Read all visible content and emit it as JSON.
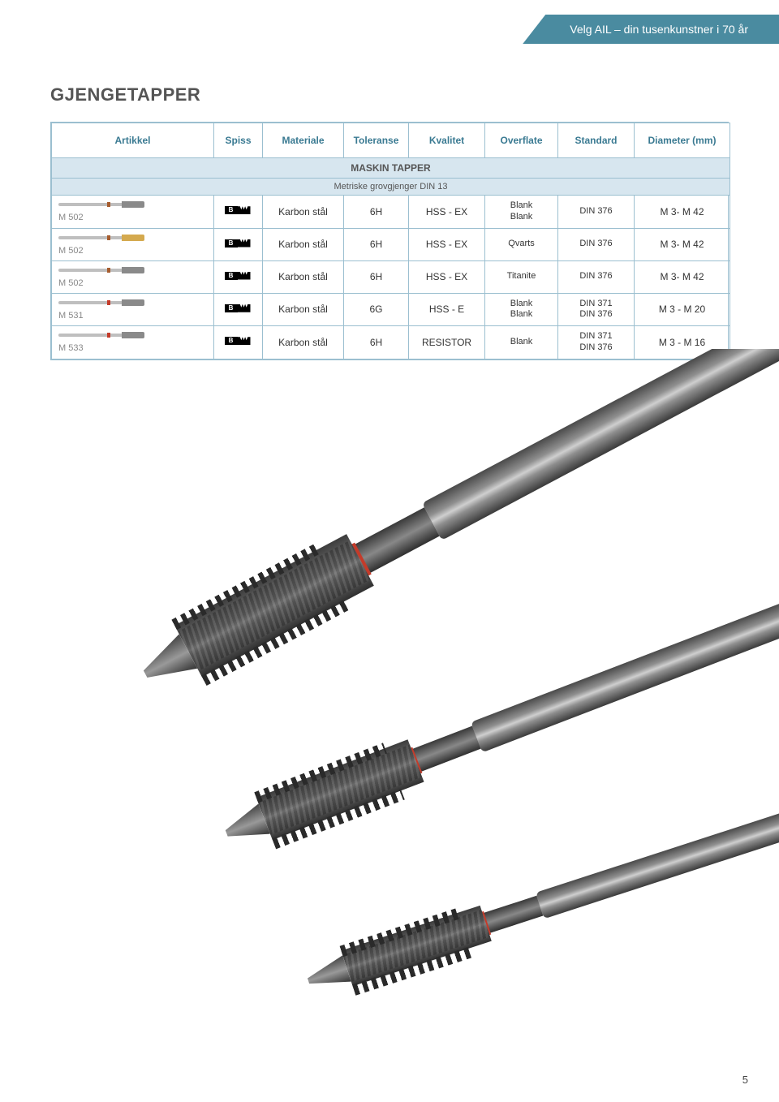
{
  "header_banner": "Velg AIL – din tusenkunstner i 70 år",
  "page_title": "GJENGETAPPER",
  "page_number": "5",
  "columns": {
    "artikkel": "Artikkel",
    "spiss": "Spiss",
    "materiale": "Materiale",
    "toleranse": "Toleranse",
    "kvalitet": "Kvalitet",
    "overflate": "Overflate",
    "standard": "Standard",
    "diameter": "Diameter (mm)"
  },
  "section": {
    "title": "MASKIN TAPPER",
    "subtitle": "Metriske grovgjenger DIN 13"
  },
  "spiss_label": "B",
  "rows": [
    {
      "article": "M 502",
      "materiale": "Karbon stål",
      "toleranse": "6H",
      "kvalitet": "HSS - EX",
      "overflate_l1": "Blank",
      "overflate_l2": "Blank",
      "standard_l1": "DIN 376",
      "standard_l2": "",
      "diameter": "M 3- M 42",
      "mini_variant": "brown1"
    },
    {
      "article": "M 502",
      "materiale": "Karbon stål",
      "toleranse": "6H",
      "kvalitet": "HSS - EX",
      "overflate_l1": "Qvarts",
      "overflate_l2": "",
      "standard_l1": "DIN 376",
      "standard_l2": "",
      "diameter": "M 3- M 42",
      "mini_variant": "gold"
    },
    {
      "article": "M 502",
      "materiale": "Karbon stål",
      "toleranse": "6H",
      "kvalitet": "HSS - EX",
      "overflate_l1": "Titanite",
      "overflate_l2": "",
      "standard_l1": "DIN 376",
      "standard_l2": "",
      "diameter": "M 3- M 42",
      "mini_variant": "brown2"
    },
    {
      "article": "M 531",
      "materiale": "Karbon stål",
      "toleranse": "6G",
      "kvalitet": "HSS - E",
      "overflate_l1": "Blank",
      "overflate_l2": "Blank",
      "standard_l1": "DIN 371",
      "standard_l2": "DIN 376",
      "diameter": "M 3 - M 20",
      "mini_variant": "red1"
    },
    {
      "article": "M 533",
      "materiale": "Karbon stål",
      "toleranse": "6H",
      "kvalitet": "RESISTOR",
      "overflate_l1": "Blank",
      "overflate_l2": "",
      "standard_l1": "DIN 371",
      "standard_l2": "DIN 376",
      "diameter": "M 3 - M 16",
      "mini_variant": "red2"
    }
  ],
  "colors": {
    "banner_bg": "#4a8ba0",
    "border": "#9bbfd0",
    "header_text": "#3a7a92",
    "section_bg": "#d7e6ef",
    "ring_red": "#c43b2a"
  }
}
